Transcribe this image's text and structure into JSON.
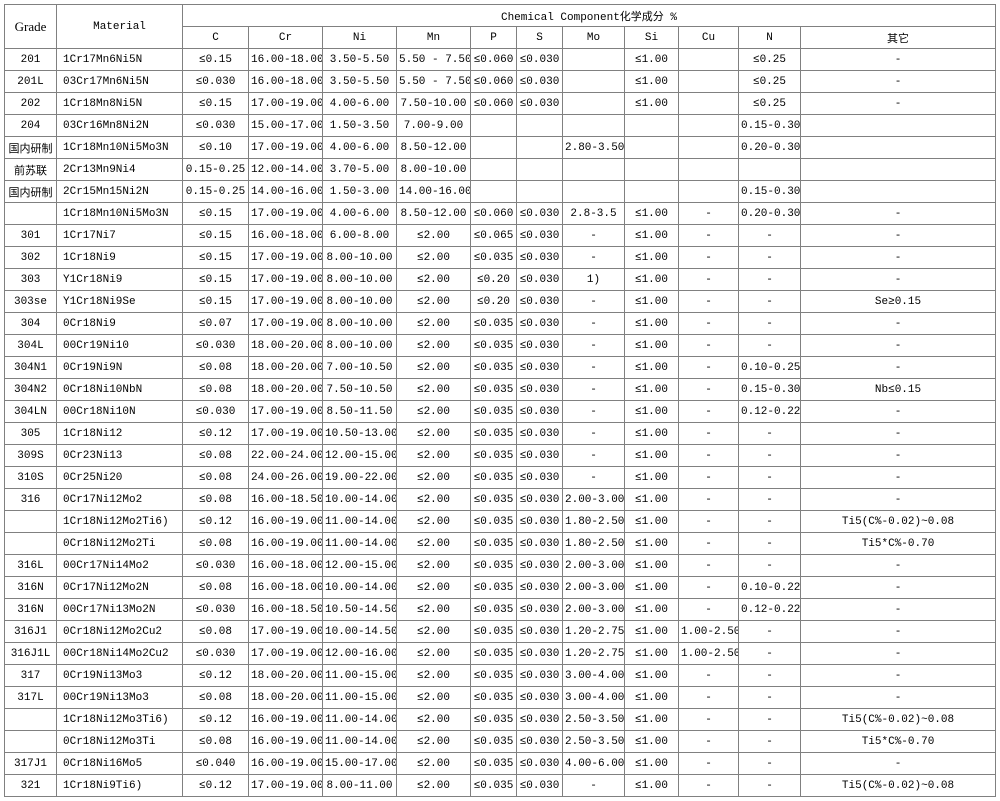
{
  "header": {
    "grade": "Grade",
    "material": "Material",
    "group": "Chemical Component化学成分 %",
    "cols": [
      "C",
      "Cr",
      "Ni",
      "Mn",
      "P",
      "S",
      "Mo",
      "Si",
      "Cu",
      "N",
      "其它"
    ]
  },
  "rows": [
    {
      "g": "201",
      "m": "1Cr17Mn6Ni5N",
      "c": [
        "≤0.15",
        "16.00-18.00",
        "3.50-5.50",
        "5.50 - 7.50",
        "≤0.060",
        "≤0.030",
        "",
        "≤1.00",
        "",
        "≤0.25",
        "-"
      ]
    },
    {
      "g": "201L",
      "m": "03Cr17Mn6Ni5N",
      "c": [
        "≤0.030",
        "16.00-18.00",
        "3.50-5.50",
        "5.50 - 7.50",
        "≤0.060",
        "≤0.030",
        "",
        "≤1.00",
        "",
        "≤0.25",
        "-"
      ]
    },
    {
      "g": "202",
      "m": "1Cr18Mn8Ni5N",
      "c": [
        "≤0.15",
        "17.00-19.00",
        "4.00-6.00",
        "7.50-10.00",
        "≤0.060",
        "≤0.030",
        "",
        "≤1.00",
        "",
        "≤0.25",
        "-"
      ]
    },
    {
      "g": "204",
      "m": "03Cr16Mn8Ni2N",
      "c": [
        "≤0.030",
        "15.00-17.00",
        "1.50-3.50",
        "7.00-9.00",
        "",
        "",
        "",
        "",
        "",
        "0.15-0.30",
        ""
      ]
    },
    {
      "g": "国内研制",
      "m": "1Cr18Mn10Ni5Mo3N",
      "c": [
        "≤0.10",
        "17.00-19.00",
        "4.00-6.00",
        "8.50-12.00",
        "",
        "",
        "2.80-3.50",
        "",
        "",
        "0.20-0.30",
        ""
      ]
    },
    {
      "g": "前苏联",
      "m": "2Cr13Mn9Ni4",
      "c": [
        "0.15-0.25",
        "12.00-14.00",
        "3.70-5.00",
        "8.00-10.00",
        "",
        "",
        "",
        "",
        "",
        "",
        ""
      ]
    },
    {
      "g": "国内研制",
      "m": "2Cr15Mn15Ni2N",
      "c": [
        "0.15-0.25",
        "14.00-16.00",
        "1.50-3.00",
        "14.00-16.00",
        "",
        "",
        "",
        "",
        "",
        "0.15-0.30",
        ""
      ]
    },
    {
      "g": "",
      "m": "1Cr18Mn10Ni5Mo3N",
      "c": [
        "≤0.15",
        "17.00-19.00",
        "4.00-6.00",
        "8.50-12.00",
        "≤0.060",
        "≤0.030",
        "2.8-3.5",
        "≤1.00",
        "-",
        "0.20-0.30",
        "-"
      ]
    },
    {
      "g": "301",
      "m": "1Cr17Ni7",
      "c": [
        "≤0.15",
        "16.00-18.00",
        "6.00-8.00",
        "≤2.00",
        "≤0.065",
        "≤0.030",
        "-",
        "≤1.00",
        "-",
        "-",
        "-"
      ]
    },
    {
      "g": "302",
      "m": "1Cr18Ni9",
      "c": [
        "≤0.15",
        "17.00-19.00",
        "8.00-10.00",
        "≤2.00",
        "≤0.035",
        "≤0.030",
        "-",
        "≤1.00",
        "-",
        "-",
        "-"
      ]
    },
    {
      "g": "303",
      "m": "Y1Cr18Ni9",
      "c": [
        "≤0.15",
        "17.00-19.00",
        "8.00-10.00",
        "≤2.00",
        "≤0.20",
        "≤0.030",
        "1)",
        "≤1.00",
        "-",
        "-",
        "-"
      ]
    },
    {
      "g": "303se",
      "m": "Y1Cr18Ni9Se",
      "c": [
        "≤0.15",
        "17.00-19.00",
        "8.00-10.00",
        "≤2.00",
        "≤0.20",
        "≤0.030",
        "-",
        "≤1.00",
        "-",
        "-",
        "Se≥0.15"
      ]
    },
    {
      "g": "304",
      "m": "0Cr18Ni9",
      "c": [
        "≤0.07",
        "17.00-19.00",
        "8.00-10.00",
        "≤2.00",
        "≤0.035",
        "≤0.030",
        "-",
        "≤1.00",
        "-",
        "-",
        "-"
      ]
    },
    {
      "g": "304L",
      "m": "00Cr19Ni10",
      "c": [
        "≤0.030",
        "18.00-20.00",
        "8.00-10.00",
        "≤2.00",
        "≤0.035",
        "≤0.030",
        "-",
        "≤1.00",
        "-",
        "-",
        "-"
      ]
    },
    {
      "g": "304N1",
      "m": "0Cr19Ni9N",
      "c": [
        "≤0.08",
        "18.00-20.00",
        "7.00-10.50",
        "≤2.00",
        "≤0.035",
        "≤0.030",
        "-",
        "≤1.00",
        "-",
        "0.10-0.25",
        "-"
      ]
    },
    {
      "g": "304N2",
      "m": "0Cr18Ni10NbN",
      "c": [
        "≤0.08",
        "18.00-20.00",
        "7.50-10.50",
        "≤2.00",
        "≤0.035",
        "≤0.030",
        "-",
        "≤1.00",
        "-",
        "0.15-0.30",
        "Nb≤0.15"
      ]
    },
    {
      "g": "304LN",
      "m": "00Cr18Ni10N",
      "c": [
        "≤0.030",
        "17.00-19.00",
        "8.50-11.50",
        "≤2.00",
        "≤0.035",
        "≤0.030",
        "-",
        "≤1.00",
        "-",
        "0.12-0.22",
        "-"
      ]
    },
    {
      "g": "305",
      "m": "1Cr18Ni12",
      "c": [
        "≤0.12",
        "17.00-19.00",
        "10.50-13.00",
        "≤2.00",
        "≤0.035",
        "≤0.030",
        "-",
        "≤1.00",
        "-",
        "-",
        "-"
      ]
    },
    {
      "g": "309S",
      "m": "0Cr23Ni13",
      "c": [
        "≤0.08",
        "22.00-24.00",
        "12.00-15.00",
        "≤2.00",
        "≤0.035",
        "≤0.030",
        "-",
        "≤1.00",
        "-",
        "-",
        "-"
      ]
    },
    {
      "g": "310S",
      "m": "0Cr25Ni20",
      "c": [
        "≤0.08",
        "24.00-26.00",
        "19.00-22.00",
        "≤2.00",
        "≤0.035",
        "≤0.030",
        "-",
        "≤1.00",
        "-",
        "-",
        "-"
      ]
    },
    {
      "g": "316",
      "m": "0Cr17Ni12Mo2",
      "c": [
        "≤0.08",
        "16.00-18.50",
        "10.00-14.00",
        "≤2.00",
        "≤0.035",
        "≤0.030",
        "2.00-3.00",
        "≤1.00",
        "-",
        "-",
        "-"
      ]
    },
    {
      "g": "",
      "m": "1Cr18Ni12Mo2Ti6)",
      "c": [
        "≤0.12",
        "16.00-19.00",
        "11.00-14.00",
        "≤2.00",
        "≤0.035",
        "≤0.030",
        "1.80-2.50",
        "≤1.00",
        "-",
        "-",
        "Ti5(C%-0.02)~0.08"
      ]
    },
    {
      "g": "",
      "m": "0Cr18Ni12Mo2Ti",
      "c": [
        "≤0.08",
        "16.00-19.00",
        "11.00-14.00",
        "≤2.00",
        "≤0.035",
        "≤0.030",
        "1.80-2.50",
        "≤1.00",
        "-",
        "-",
        "Ti5*C%-0.70"
      ]
    },
    {
      "g": "316L",
      "m": "00Cr17Ni14Mo2",
      "c": [
        "≤0.030",
        "16.00-18.00",
        "12.00-15.00",
        "≤2.00",
        "≤0.035",
        "≤0.030",
        "2.00-3.00",
        "≤1.00",
        "-",
        "-",
        "-"
      ]
    },
    {
      "g": "316N",
      "m": "0Cr17Ni12Mo2N",
      "c": [
        "≤0.08",
        "16.00-18.00",
        "10.00-14.00",
        "≤2.00",
        "≤0.035",
        "≤0.030",
        "2.00-3.00",
        "≤1.00",
        "-",
        "0.10-0.22",
        "-"
      ]
    },
    {
      "g": "316N",
      "m": "00Cr17Ni13Mo2N",
      "c": [
        "≤0.030",
        "16.00-18.50",
        "10.50-14.50",
        "≤2.00",
        "≤0.035",
        "≤0.030",
        "2.00-3.00",
        "≤1.00",
        "-",
        "0.12-0.22",
        "-"
      ]
    },
    {
      "g": "316J1",
      "m": "0Cr18Ni12Mo2Cu2",
      "c": [
        "≤0.08",
        "17.00-19.00",
        "10.00-14.50",
        "≤2.00",
        "≤0.035",
        "≤0.030",
        "1.20-2.75",
        "≤1.00",
        "1.00-2.50",
        "-",
        "-"
      ]
    },
    {
      "g": "316J1L",
      "m": "00Cr18Ni14Mo2Cu2",
      "c": [
        "≤0.030",
        "17.00-19.00",
        "12.00-16.00",
        "≤2.00",
        "≤0.035",
        "≤0.030",
        "1.20-2.75",
        "≤1.00",
        "1.00-2.50",
        "-",
        "-"
      ]
    },
    {
      "g": "317",
      "m": "0Cr19Ni13Mo3",
      "c": [
        "≤0.12",
        "18.00-20.00",
        "11.00-15.00",
        "≤2.00",
        "≤0.035",
        "≤0.030",
        "3.00-4.00",
        "≤1.00",
        "-",
        "-",
        "-"
      ]
    },
    {
      "g": "317L",
      "m": "00Cr19Ni13Mo3",
      "c": [
        "≤0.08",
        "18.00-20.00",
        "11.00-15.00",
        "≤2.00",
        "≤0.035",
        "≤0.030",
        "3.00-4.00",
        "≤1.00",
        "-",
        "-",
        "-"
      ]
    },
    {
      "g": "",
      "m": "1Cr18Ni12Mo3Ti6)",
      "c": [
        "≤0.12",
        "16.00-19.00",
        "11.00-14.00",
        "≤2.00",
        "≤0.035",
        "≤0.030",
        "2.50-3.50",
        "≤1.00",
        "-",
        "-",
        "Ti5(C%-0.02)~0.08"
      ]
    },
    {
      "g": "",
      "m": "0Cr18Ni12Mo3Ti",
      "c": [
        "≤0.08",
        "16.00-19.00",
        "11.00-14.00",
        "≤2.00",
        "≤0.035",
        "≤0.030",
        "2.50-3.50",
        "≤1.00",
        "-",
        "-",
        "Ti5*C%-0.70"
      ]
    },
    {
      "g": "317J1",
      "m": "0Cr18Ni16Mo5",
      "c": [
        "≤0.040",
        "16.00-19.00",
        "15.00-17.00",
        "≤2.00",
        "≤0.035",
        "≤0.030",
        "4.00-6.00",
        "≤1.00",
        "-",
        "-",
        "-"
      ]
    },
    {
      "g": "321",
      "m": "1Cr18Ni9Ti6)",
      "c": [
        "≤0.12",
        "17.00-19.00",
        "8.00-11.00",
        "≤2.00",
        "≤0.035",
        "≤0.030",
        "-",
        "≤1.00",
        "-",
        "-",
        "Ti5(C%-0.02)~0.08"
      ]
    }
  ]
}
